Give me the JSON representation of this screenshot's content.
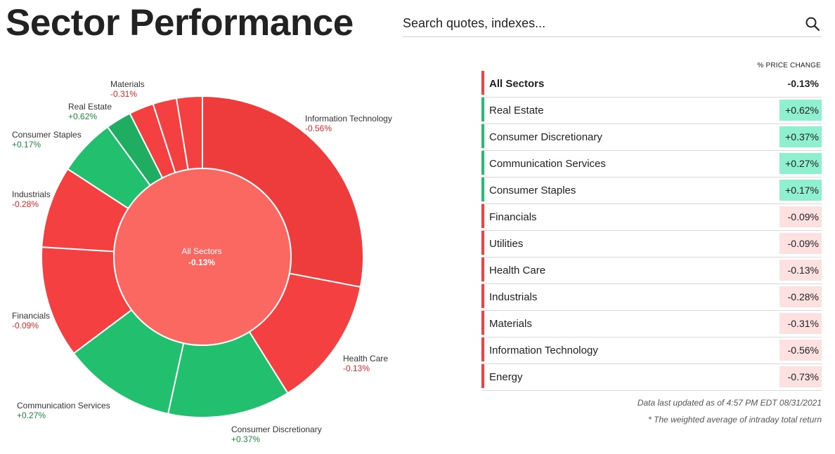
{
  "header": {
    "title": "Sector Performance"
  },
  "search": {
    "placeholder": "Search quotes, indexes..."
  },
  "center": {
    "name": "All Sectors",
    "value": "-0.13%"
  },
  "table": {
    "column_header": "% PRICE CHANGE",
    "rows": [
      {
        "name": "All Sectors",
        "value": "-0.13%",
        "trend": "neg"
      },
      {
        "name": "Real Estate",
        "value": "+0.62%",
        "trend": "pos"
      },
      {
        "name": "Consumer Discretionary",
        "value": "+0.37%",
        "trend": "pos"
      },
      {
        "name": "Communication Services",
        "value": "+0.27%",
        "trend": "pos"
      },
      {
        "name": "Consumer Staples",
        "value": "+0.17%",
        "trend": "pos"
      },
      {
        "name": "Financials",
        "value": "-0.09%",
        "trend": "neg"
      },
      {
        "name": "Utilities",
        "value": "-0.09%",
        "trend": "neg"
      },
      {
        "name": "Health Care",
        "value": "-0.13%",
        "trend": "neg"
      },
      {
        "name": "Industrials",
        "value": "-0.28%",
        "trend": "neg"
      },
      {
        "name": "Materials",
        "value": "-0.31%",
        "trend": "neg"
      },
      {
        "name": "Information Technology",
        "value": "-0.56%",
        "trend": "neg"
      },
      {
        "name": "Energy",
        "value": "-0.73%",
        "trend": "neg"
      }
    ]
  },
  "footer": {
    "updated": "Data last updated as of 4:57 PM EDT 08/31/2021",
    "note": "* The weighted average of intraday total return"
  },
  "colors": {
    "negative": "#f44040",
    "negative_dark": "#ee3c3c",
    "positive": "#22bf6e",
    "positive_dark": "#1fad62",
    "center": "#fb6862",
    "neg_badge": "#fde1e1",
    "pos_badge": "#8ef0cf",
    "neg_text": "#e02727",
    "pos_text": "#1e8a3c"
  },
  "chart_data": {
    "type": "pie",
    "center_label": "All Sectors",
    "center_value": -0.13,
    "slices": [
      {
        "name": "Information Technology",
        "label": "-0.56%",
        "value": -0.56,
        "share": 28.2,
        "trend": "neg"
      },
      {
        "name": "Health Care",
        "label": "-0.13%",
        "value": -0.13,
        "share": 13.2,
        "trend": "neg"
      },
      {
        "name": "Consumer Discretionary",
        "label": "+0.37%",
        "value": 0.37,
        "share": 12.4,
        "trend": "pos"
      },
      {
        "name": "Communication Services",
        "label": "+0.27%",
        "value": 0.27,
        "share": 11.4,
        "trend": "pos"
      },
      {
        "name": "Financials",
        "label": "-0.09%",
        "value": -0.09,
        "share": 11.3,
        "trend": "neg"
      },
      {
        "name": "Industrials",
        "label": "-0.28%",
        "value": -0.28,
        "share": 8.3,
        "trend": "neg"
      },
      {
        "name": "Consumer Staples",
        "label": "+0.17%",
        "value": 0.17,
        "share": 5.8,
        "trend": "pos"
      },
      {
        "name": "Real Estate",
        "label": "+0.62%",
        "value": 0.62,
        "share": 2.6,
        "trend": "pos"
      },
      {
        "name": "Materials",
        "label": "-0.31%",
        "value": -0.31,
        "share": 2.5,
        "trend": "neg"
      },
      {
        "name": "Utilities",
        "label": "-0.09%",
        "value": -0.09,
        "share": 2.4,
        "trend": "neg"
      },
      {
        "name": "Energy",
        "label": "-0.73%",
        "value": -0.73,
        "share": 2.6,
        "trend": "neg"
      }
    ]
  }
}
